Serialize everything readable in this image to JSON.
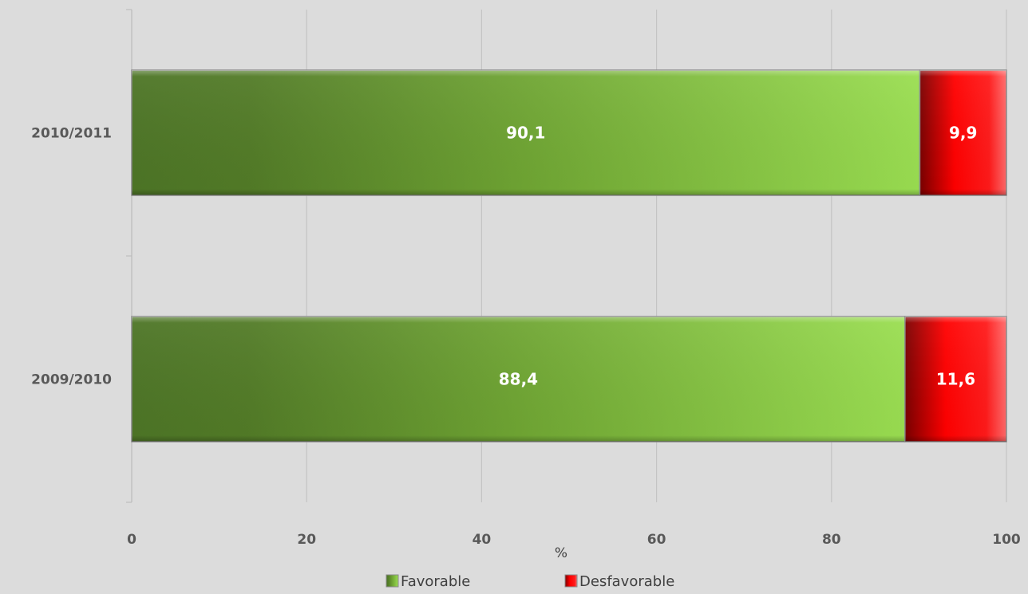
{
  "chart_data": {
    "type": "bar",
    "orientation": "horizontal",
    "stacked": true,
    "categories": [
      "2010/2011",
      "2009/2010"
    ],
    "series": [
      {
        "name": "Favorable",
        "values": [
          90.1,
          88.4
        ],
        "labels": [
          "90,1",
          "88,4"
        ],
        "color": "#6ea535"
      },
      {
        "name": "Desfavorable",
        "values": [
          9.9,
          11.6
        ],
        "labels": [
          "9,9",
          "11,6"
        ],
        "color": "#ff0000"
      }
    ],
    "xlabel": "%",
    "xlim": [
      0,
      100
    ],
    "xticks": [
      0,
      20,
      40,
      60,
      80,
      100
    ],
    "xtick_labels": [
      "0",
      "20",
      "40",
      "60",
      "80",
      "100"
    ],
    "grid": true,
    "legend_position": "bottom"
  }
}
